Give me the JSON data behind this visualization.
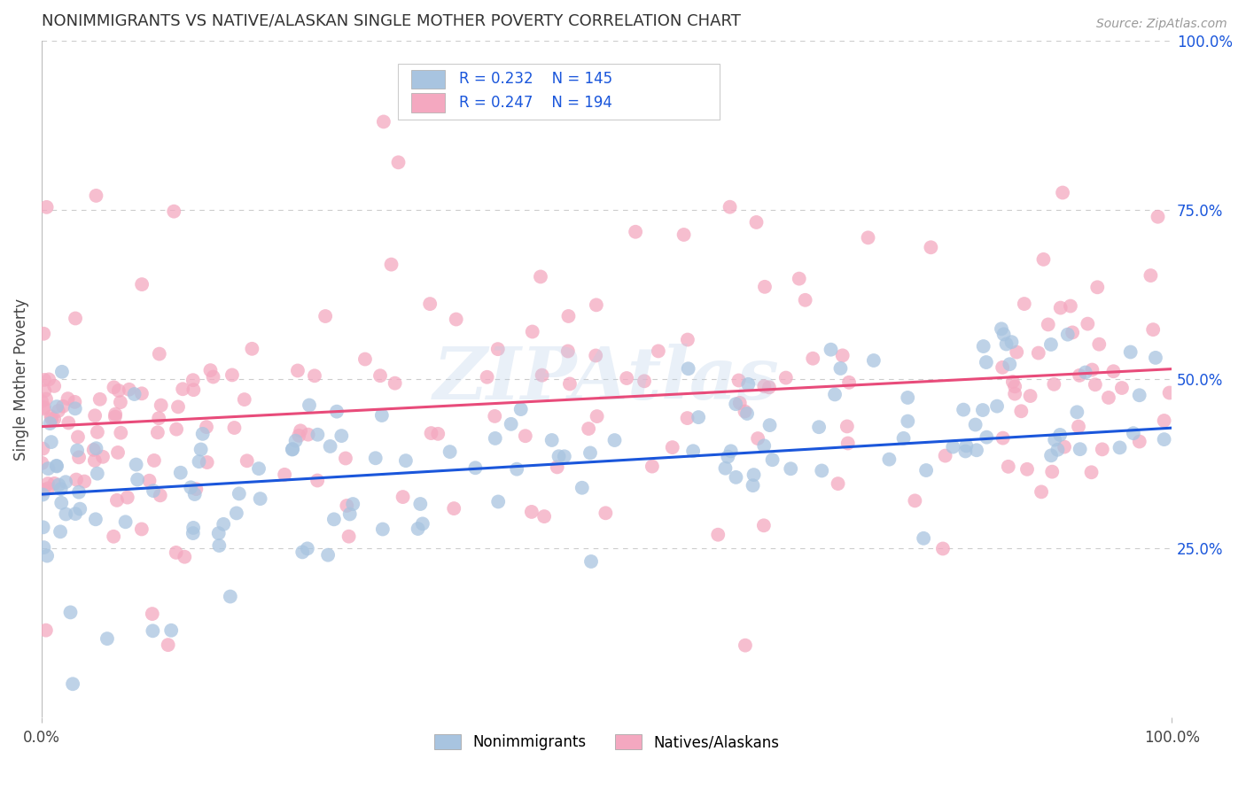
{
  "title": "NONIMMIGRANTS VS NATIVE/ALASKAN SINGLE MOTHER POVERTY CORRELATION CHART",
  "source": "Source: ZipAtlas.com",
  "ylabel": "Single Mother Poverty",
  "xlim": [
    0.0,
    1.0
  ],
  "ylim": [
    0.0,
    1.0
  ],
  "y_tick_labels_right": [
    "100.0%",
    "75.0%",
    "50.0%",
    "25.0%"
  ],
  "y_tick_positions_right": [
    1.0,
    0.75,
    0.5,
    0.25
  ],
  "nonimmigrant_color": "#a8c4e0",
  "native_color": "#f4a8c0",
  "nonimmigrant_line_color": "#1a56db",
  "native_line_color": "#e84b7a",
  "legend_R_nonimmigrant": "0.232",
  "legend_N_nonimmigrant": "145",
  "legend_R_native": "0.247",
  "legend_N_native": "194",
  "background_color": "#ffffff",
  "grid_color": "#cccccc",
  "watermark": "ZIPAtlas",
  "title_fontsize": 13,
  "nonimmigrant_trend_x": [
    0.0,
    1.0
  ],
  "nonimmigrant_trend_y": [
    0.33,
    0.428
  ],
  "native_trend_x": [
    0.0,
    1.0
  ],
  "native_trend_y": [
    0.43,
    0.515
  ]
}
